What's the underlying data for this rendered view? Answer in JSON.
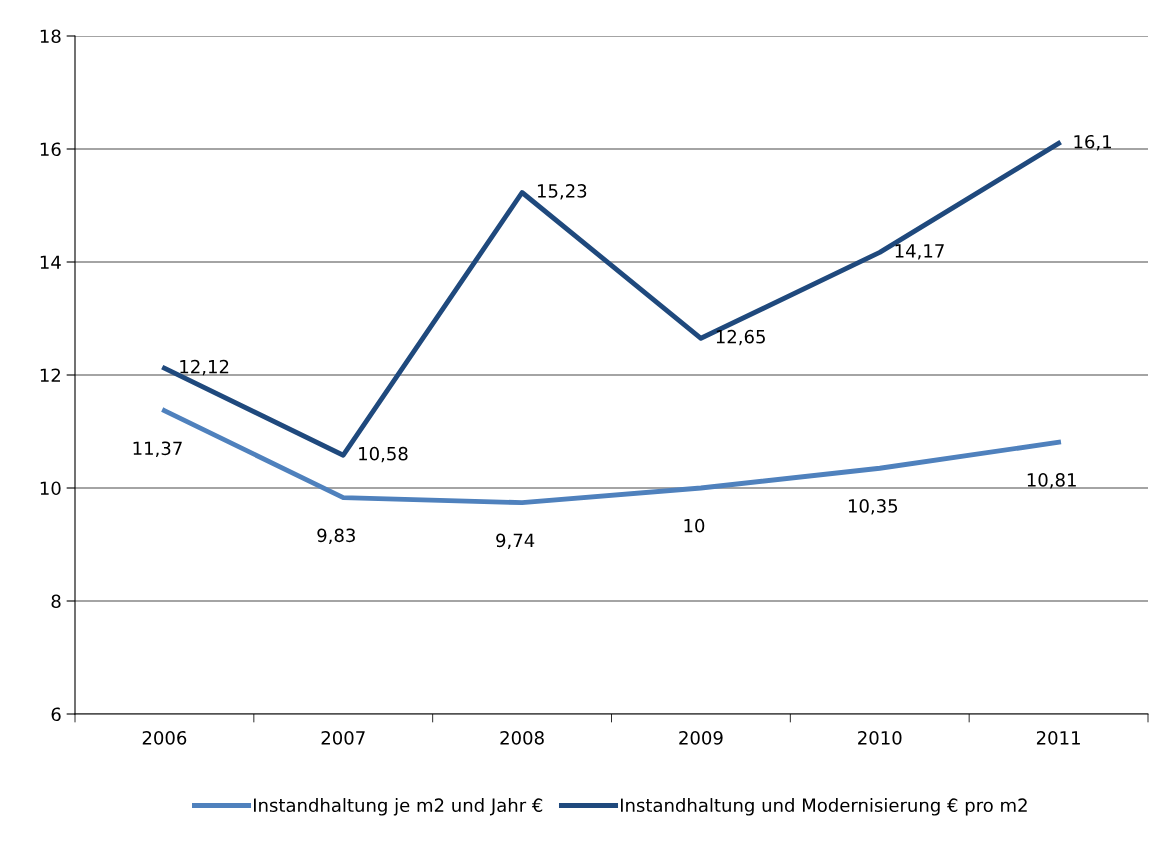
{
  "chart_data": {
    "type": "line",
    "categories": [
      "2006",
      "2007",
      "2008",
      "2009",
      "2010",
      "2011"
    ],
    "series": [
      {
        "name": "Instandhaltung je m2 und Jahr €",
        "color": "#4f81bd",
        "values": [
          11.37,
          9.83,
          9.74,
          10,
          10.35,
          10.81
        ],
        "value_labels": [
          "11,37",
          "9,83",
          "9,74",
          "10",
          "10,35",
          "10,81"
        ]
      },
      {
        "name": "Instandhaltung und Modernisierung € pro m2",
        "color": "#1f497d",
        "values": [
          12.12,
          10.58,
          15.23,
          12.65,
          14.17,
          16.1
        ],
        "value_labels": [
          "12,12",
          "10,58",
          "15,23",
          "12,65",
          "14,17",
          "16,1"
        ]
      }
    ],
    "ylim": [
      6,
      18
    ],
    "yticks": [
      6,
      8,
      10,
      12,
      14,
      16,
      18
    ],
    "grid": "y",
    "legend": "bottom",
    "marker": "none",
    "line_style": "solid"
  }
}
